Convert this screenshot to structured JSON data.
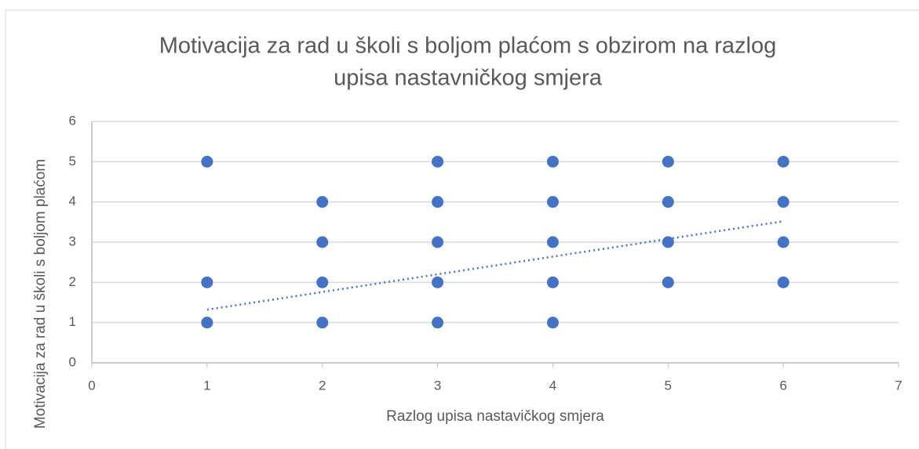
{
  "chart_data": {
    "type": "scatter",
    "title": [
      "Motivacija za rad u školi s boljom plaćom s obzirom na razlog",
      "upisa nastavničkog smjera"
    ],
    "x_label": "Razlog upisa nastavičkog smjera",
    "y_label": "Motivacija za rad u školi s boljom plaćom",
    "series": [
      {
        "color": "#4472c4",
        "x": [
          1,
          1,
          1,
          2,
          2,
          2,
          2,
          3,
          3,
          3,
          3,
          3,
          4,
          4,
          4,
          4,
          4,
          5,
          5,
          5,
          5,
          6,
          6,
          6,
          6
        ],
        "values": [
          5,
          2,
          1,
          4,
          3,
          2,
          1,
          5,
          4,
          3,
          2,
          1,
          5,
          4,
          3,
          2,
          1,
          5,
          4,
          3,
          2,
          5,
          4,
          3,
          2
        ]
      }
    ],
    "trendline": {
      "color": "#4472c4",
      "x": [
        1,
        6
      ],
      "values": [
        1.32,
        3.52
      ]
    },
    "xlim": [
      0,
      7
    ],
    "xticks": [
      0,
      1,
      2,
      3,
      4,
      5,
      6,
      7
    ],
    "ylim": [
      0,
      6
    ],
    "yticks": [
      0,
      1,
      2,
      3,
      4,
      5,
      6
    ],
    "grid": true
  }
}
